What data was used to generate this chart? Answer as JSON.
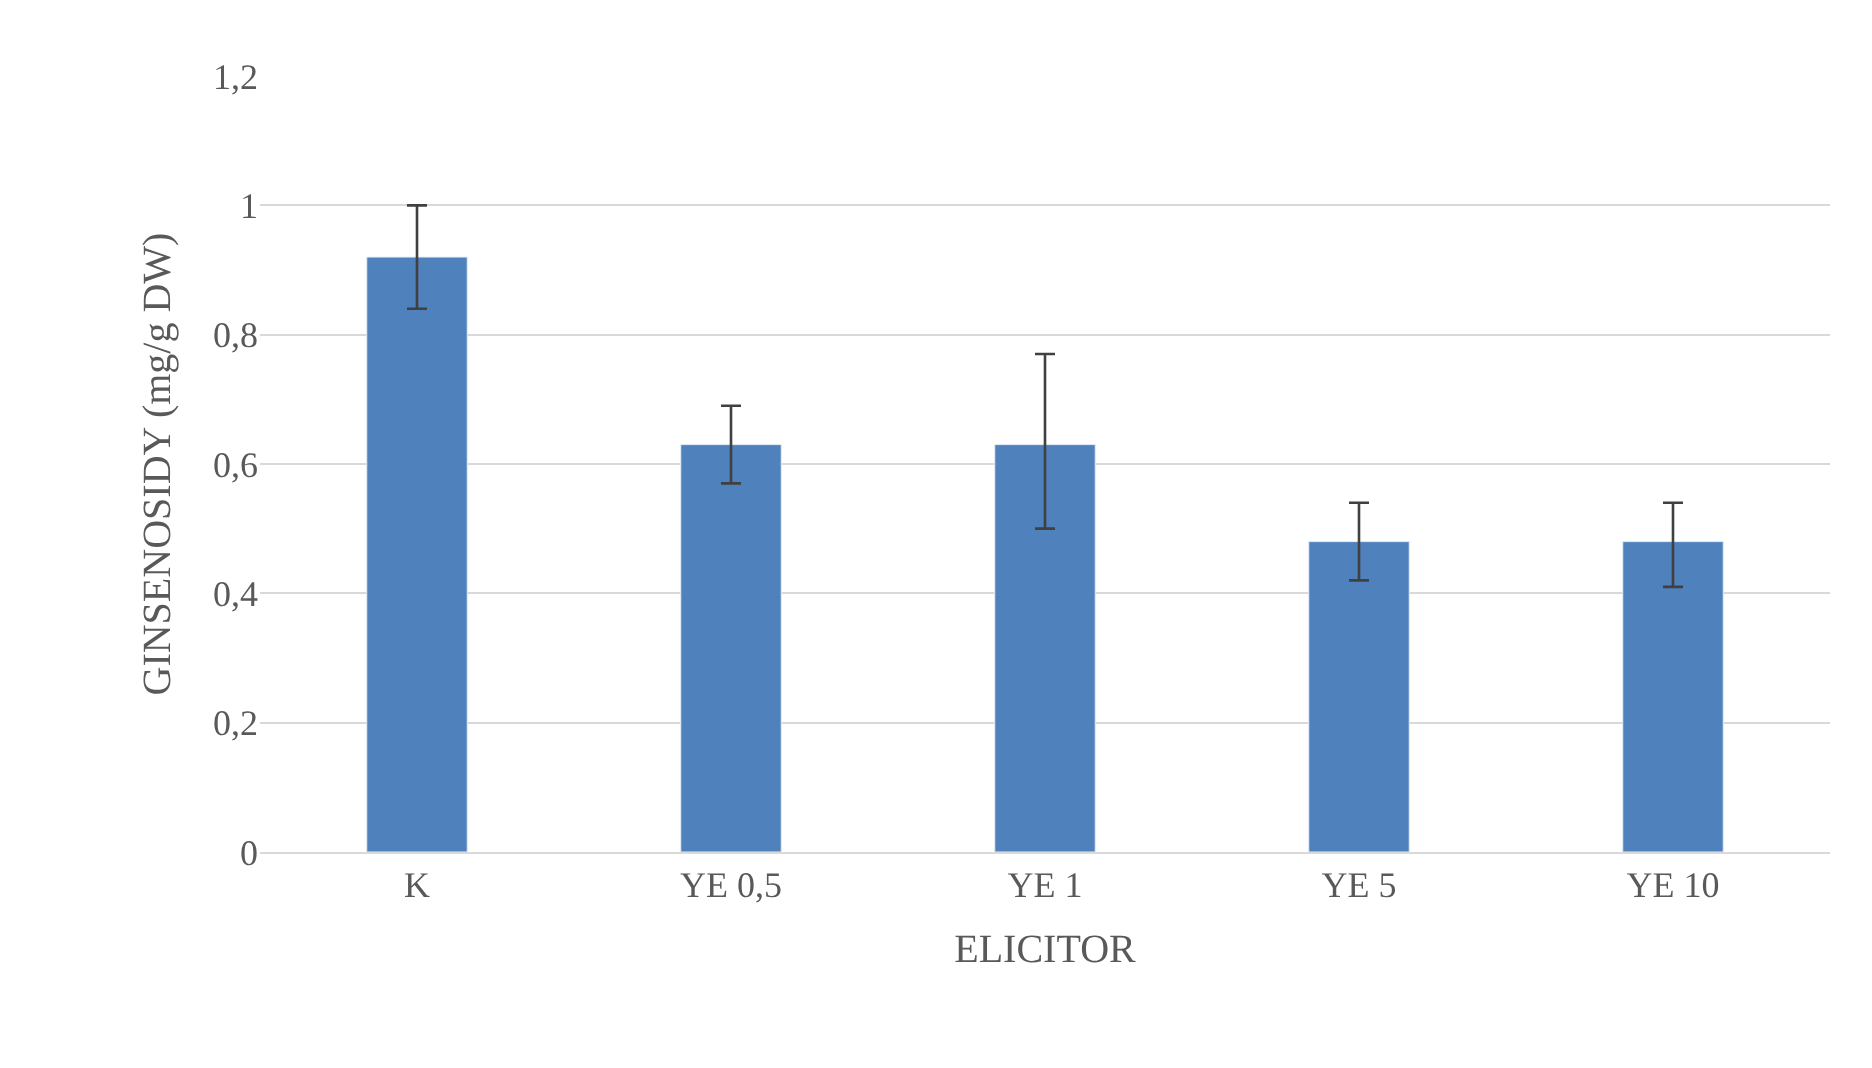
{
  "chart_data": {
    "type": "bar",
    "xlabel": "ELICITOR",
    "ylabel": "GINSENOSIDY (mg/g DW)",
    "categories": [
      "K",
      "YE 0,5",
      "YE 1",
      "YE 5",
      "YE 10"
    ],
    "values": [
      0.92,
      0.63,
      0.63,
      0.48,
      0.48
    ],
    "errors": [
      [
        0.84,
        1.0
      ],
      [
        0.57,
        0.69
      ],
      [
        0.5,
        0.77
      ],
      [
        0.42,
        0.54
      ],
      [
        0.41,
        0.54
      ]
    ],
    "color": "#4f81bd",
    "ylim": [
      0,
      1.2
    ],
    "yticks": [
      0,
      {
        "value": 0.2,
        "label": "0,2"
      },
      {
        "value": 0.4,
        "label": "0,4"
      },
      {
        "value": 0.6,
        "label": "0,6"
      },
      {
        "value": 0.8,
        "label": "0,8"
      },
      1,
      {
        "value": 1.2,
        "label": "1,2"
      }
    ],
    "grid": "y",
    "legend": false
  }
}
